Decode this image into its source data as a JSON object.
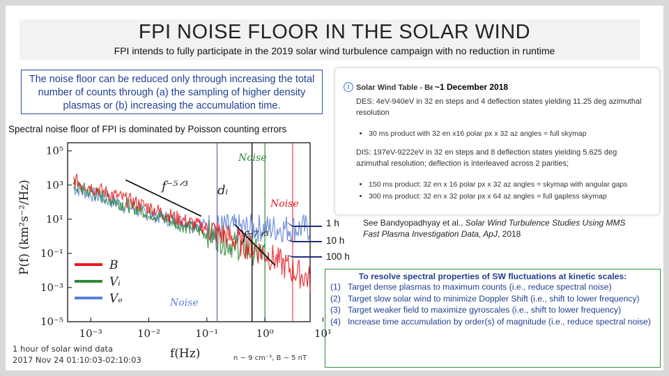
{
  "slide": {
    "title": "FPI NOISE FLOOR IN THE SOLAR WIND",
    "subtitle": "FPI intends to fully participate in the 2019 solar wind turbulence campaign with no reduction in runtime"
  },
  "noise_box": {
    "text": "The noise floor can be reduced only through increasing the total number of counts through (a) the sampling of higher density plasmas or (b) increasing the accumulation time."
  },
  "spectral_caption": "Spectral noise floor of FPI is dominated by Poisson counting errors",
  "chart_data": {
    "type": "line",
    "xlabel": "f(Hz)",
    "ylabel": "P(f)  (km²s⁻²/Hz)",
    "x_scale": "log",
    "y_scale": "log",
    "xlim": [
      0.0004,
      6
    ],
    "ylim": [
      1e-05,
      300000
    ],
    "x_ticks": [
      "10⁻³",
      "10⁻²",
      "10⁻¹",
      "10⁰",
      "10¹"
    ],
    "y_ticks": [
      "10⁵",
      "10³",
      "10¹",
      "10⁻¹",
      "10⁻³",
      "10⁻⁵"
    ],
    "series": [
      {
        "name": "B",
        "color": "#e8191f",
        "x": [
          0.0005,
          0.001,
          0.003,
          0.01,
          0.03,
          0.1,
          0.3,
          1,
          3,
          6
        ],
        "y": [
          2000,
          800,
          200,
          50,
          12,
          3,
          0.6,
          0.1,
          0.01,
          0.003
        ]
      },
      {
        "name": "Vᵢ",
        "color": "#2d8a38",
        "x": [
          0.0005,
          0.001,
          0.003,
          0.01,
          0.03,
          0.1,
          0.3,
          1
        ],
        "y": [
          900,
          400,
          100,
          25,
          6,
          1.5,
          0.3,
          0.08
        ]
      },
      {
        "name": "Vₑ",
        "color": "#5a7fd6",
        "x": [
          0.0005,
          0.001,
          0.003,
          0.01,
          0.03,
          0.1,
          0.3,
          1,
          3,
          6
        ],
        "y": [
          700,
          300,
          80,
          20,
          8,
          4,
          3,
          3,
          3,
          3
        ]
      }
    ],
    "annotations": [
      "f⁻⁵ᐟ³",
      "f⁻⁷ᐟ³",
      "dᵢ",
      "Noise",
      "Noise",
      "Noise"
    ]
  },
  "plot_caption": {
    "line1": "1 hour of solar wind data",
    "line2": "2017 Nov 24 01:10:03-02:10:03",
    "params": "n ~ 9 cm⁻³, B ~ 5 nT"
  },
  "accum_labels": [
    "1 h",
    "10 h",
    "100 h"
  ],
  "sw_table": {
    "header": "Solar Wind Table - Begins",
    "date": "~1 December 2018",
    "des": "DES: 4eV-940eV in 32 en steps and 4 deflection states yielding 11.25 deg azimuthal resolution",
    "des_items": [
      "30 ms product with 32 en x16 polar px x 32 az angles = full skymap"
    ],
    "dis": "DIS: 197eV-9222eV in 32 en steps and 8 deflection states yielding 5.625 deg azimuthal resolution; deflection is interleaved across 2 parities;",
    "dis_items": [
      "150 ms product: 32 en x 16 polar px x 32 az angles = skymap with angular gaps",
      "300 ms product: 32 en x 32 polar px x 64 az angles = full gapless skymap"
    ]
  },
  "citation": {
    "prefix": "See Bandyopadhyay et al., ",
    "title": "Solar Wind Turbulence Studies Using MMS Fast Plasma Investigation Data, ApJ",
    "suffix": ", 2018"
  },
  "goals": {
    "heading": "To resolve spectral properties of SW fluctuations at kinetic scales:",
    "items": [
      {
        "num": "(1)",
        "text": "Target dense plasmas to maximum counts (i.e., reduce spectral noise)"
      },
      {
        "num": "(2)",
        "text": "Target slow solar wind to minimize Doppler Shift (i.e., shift to lower frequency)"
      },
      {
        "num": "(3)",
        "text": "Target weaker field to maximize gyroscales (i.e., shift to lower frequency)"
      },
      {
        "num": "(4)",
        "text": "Increase time accumulation by order(s) of magnitude (i.e., reduce spectral noise)"
      }
    ]
  },
  "colors": {
    "title_bar": "#f2f2f2",
    "noise_text": "#1f3f8f",
    "green_border": "#2e8b3a"
  }
}
